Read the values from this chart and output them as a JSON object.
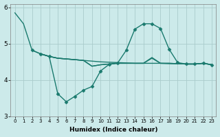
{
  "title": "",
  "xlabel": "Humidex (Indice chaleur)",
  "bg_color": "#cceaea",
  "grid_color": "#aacccc",
  "line_color": "#1a7a6e",
  "xlim": [
    -0.5,
    23.5
  ],
  "ylim": [
    3,
    6.1
  ],
  "yticks": [
    3,
    4,
    5,
    6
  ],
  "xtick_labels": [
    "0",
    "1",
    "2",
    "3",
    "4",
    "5",
    "6",
    "7",
    "8",
    "9",
    "10",
    "11",
    "12",
    "13",
    "14",
    "15",
    "16",
    "17",
    "18",
    "19",
    "20",
    "21",
    "22",
    "23"
  ],
  "series": [
    {
      "x": [
        0,
        1,
        2,
        3,
        4,
        5,
        6,
        7,
        8,
        9,
        10,
        11,
        12,
        13,
        14,
        15,
        16,
        17,
        18,
        19,
        20,
        21,
        22,
        23
      ],
      "y": [
        5.85,
        5.55,
        4.82,
        4.72,
        4.65,
        4.6,
        4.58,
        4.56,
        4.54,
        4.52,
        4.5,
        4.49,
        4.48,
        4.47,
        4.46,
        4.46,
        4.46,
        4.46,
        4.45,
        4.45,
        4.44,
        4.44,
        4.46,
        4.42
      ],
      "marker": null,
      "lw": 1.0
    },
    {
      "x": [
        2,
        3,
        4,
        5,
        6,
        7,
        8,
        9,
        10,
        11,
        12,
        13,
        14,
        15,
        16,
        17,
        18,
        19,
        20,
        21,
        22,
        23
      ],
      "y": [
        4.82,
        4.72,
        4.65,
        3.62,
        3.4,
        3.55,
        3.72,
        3.82,
        4.25,
        4.43,
        4.47,
        4.82,
        5.4,
        5.55,
        5.55,
        5.42,
        4.85,
        4.48,
        4.44,
        4.44,
        4.46,
        4.42
      ],
      "marker": "D",
      "lw": 1.0
    },
    {
      "x": [
        3,
        4,
        5,
        6,
        7,
        8,
        9,
        10,
        11,
        12,
        13,
        14,
        15,
        16,
        17,
        18,
        19,
        20,
        21,
        22,
        23
      ],
      "y": [
        4.72,
        4.65,
        4.6,
        4.58,
        4.56,
        4.54,
        4.38,
        4.42,
        4.44,
        4.46,
        4.46,
        4.46,
        4.46,
        4.62,
        4.46,
        4.46,
        4.45,
        4.44,
        4.44,
        4.46,
        4.42
      ],
      "marker": null,
      "lw": 1.0
    },
    {
      "x": [
        3,
        4,
        5,
        6,
        7,
        8,
        9,
        10,
        11,
        12,
        13,
        14,
        15,
        16,
        17,
        18,
        19,
        20,
        21,
        22,
        23
      ],
      "y": [
        4.72,
        4.65,
        4.6,
        4.58,
        4.56,
        4.54,
        4.38,
        4.42,
        4.44,
        4.46,
        4.46,
        4.46,
        4.46,
        4.6,
        4.46,
        4.46,
        4.45,
        4.44,
        4.44,
        4.46,
        4.42
      ],
      "marker": null,
      "lw": 1.0
    }
  ]
}
